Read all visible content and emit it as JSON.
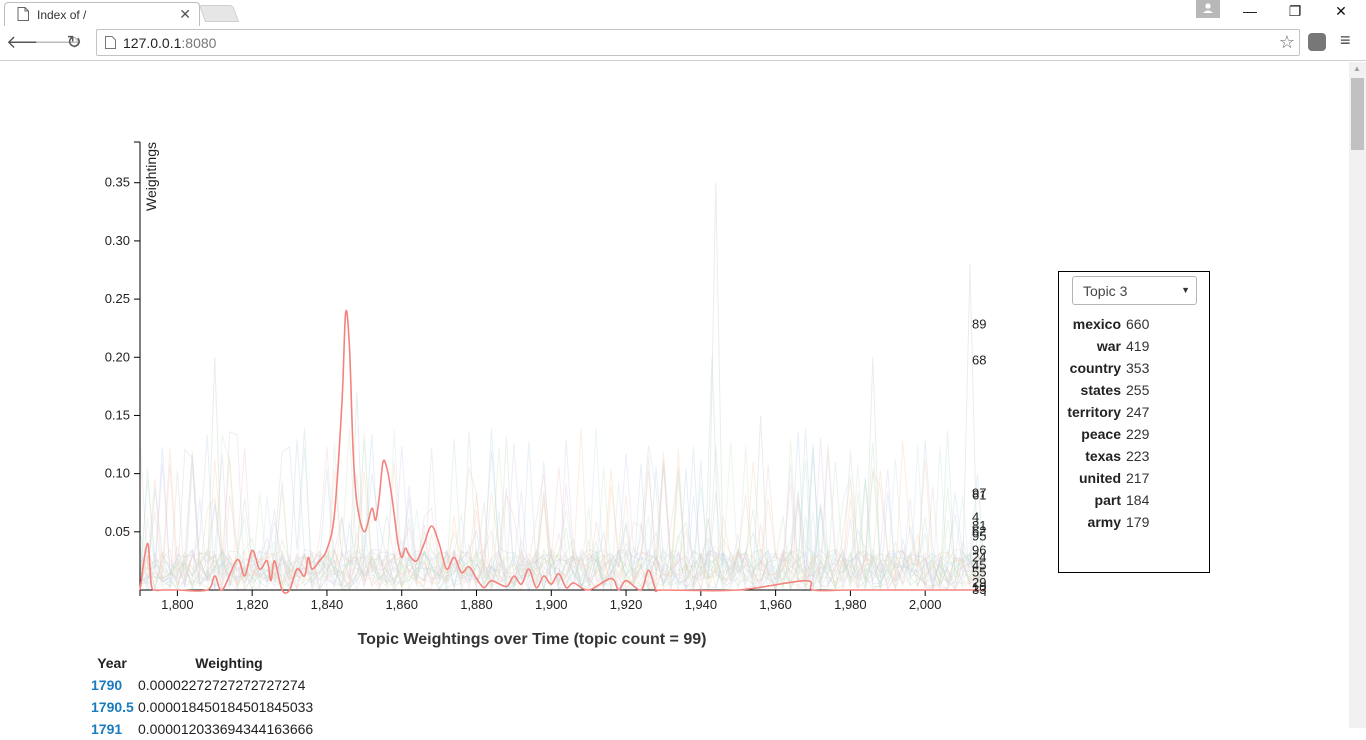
{
  "browser": {
    "tab_title": "Index of /",
    "url_host": "127.0.0.1",
    "url_port": ":8080"
  },
  "topic_panel": {
    "selected_topic": "Topic 3",
    "words": [
      {
        "word": "mexico",
        "count": "660"
      },
      {
        "word": "war",
        "count": "419"
      },
      {
        "word": "country",
        "count": "353"
      },
      {
        "word": "states",
        "count": "255"
      },
      {
        "word": "territory",
        "count": "247"
      },
      {
        "word": "peace",
        "count": "229"
      },
      {
        "word": "texas",
        "count": "223"
      },
      {
        "word": "united",
        "count": "217"
      },
      {
        "word": "part",
        "count": "184"
      },
      {
        "word": "army",
        "count": "179"
      }
    ]
  },
  "table": {
    "headers": [
      "Year",
      "Weighting"
    ],
    "rows": [
      {
        "year": "1790",
        "weighting": "0.00002272727272727274"
      },
      {
        "year": "1790.5",
        "weighting": "0.000018450184501845033"
      },
      {
        "year": "1791",
        "weighting": "0.000012033694344163666"
      }
    ]
  },
  "chart_data": {
    "type": "line",
    "title": "Topic Weightings over Time (topic count = 99)",
    "xlabel": "",
    "ylabel": "Weightings",
    "xlim": [
      1790,
      2016
    ],
    "ylim": [
      0,
      0.385
    ],
    "x_ticks": [
      "1,800",
      "1,820",
      "1,840",
      "1,860",
      "1,880",
      "1,900",
      "1,920",
      "1,940",
      "1,960",
      "1,980",
      "2,000"
    ],
    "y_ticks": [
      "0.05",
      "0.10",
      "0.15",
      "0.20",
      "0.25",
      "0.30",
      "0.35"
    ],
    "grid": false,
    "highlight_color": "#f4837d",
    "series": [
      {
        "name": "Topic 3",
        "x": [
          1790,
          1792,
          1793,
          1794,
          1796,
          1800,
          1808,
          1810,
          1812,
          1816,
          1818,
          1820,
          1822,
          1824,
          1825,
          1826,
          1828,
          1830,
          1832,
          1834,
          1835,
          1836,
          1838,
          1840,
          1842,
          1844,
          1845,
          1846,
          1847,
          1848,
          1850,
          1852,
          1853,
          1854,
          1855,
          1856,
          1857,
          1858,
          1859,
          1860,
          1861,
          1862,
          1864,
          1866,
          1868,
          1870,
          1872,
          1874,
          1876,
          1878,
          1880,
          1882,
          1884,
          1888,
          1890,
          1892,
          1894,
          1896,
          1898,
          1900,
          1902,
          1904,
          1906,
          1910,
          1916,
          1918,
          1920,
          1924,
          1926,
          1928,
          1930,
          1950,
          1968,
          1970,
          1980,
          2000,
          2016
        ],
        "y": [
          0.0,
          0.04,
          0.005,
          0.0,
          0.0,
          0.0,
          0.0,
          0.012,
          0.0,
          0.026,
          0.012,
          0.034,
          0.018,
          0.025,
          0.008,
          0.025,
          0.0,
          0.0,
          0.018,
          0.012,
          0.028,
          0.018,
          0.025,
          0.035,
          0.065,
          0.16,
          0.238,
          0.21,
          0.12,
          0.075,
          0.05,
          0.07,
          0.06,
          0.08,
          0.11,
          0.105,
          0.088,
          0.065,
          0.04,
          0.028,
          0.036,
          0.03,
          0.025,
          0.04,
          0.055,
          0.04,
          0.018,
          0.028,
          0.015,
          0.02,
          0.01,
          0.002,
          0.008,
          0.003,
          0.012,
          0.005,
          0.018,
          0.002,
          0.012,
          0.005,
          0.014,
          0.002,
          0.006,
          0.0,
          0.01,
          0.0,
          0.008,
          0.0,
          0.017,
          0.0,
          0.0,
          0.0,
          0.008,
          0.0,
          0.0,
          0.0,
          0.0
        ]
      }
    ],
    "line_end_labels": [
      {
        "label": "89",
        "y": 0.229
      },
      {
        "label": "68",
        "y": 0.198
      },
      {
        "label": "97",
        "y": 0.084
      },
      {
        "label": "61",
        "y": 0.082
      },
      {
        "label": "4",
        "y": 0.063
      },
      {
        "label": "81",
        "y": 0.056
      },
      {
        "label": "62",
        "y": 0.051
      },
      {
        "label": "95",
        "y": 0.047
      },
      {
        "label": "96",
        "y": 0.035
      },
      {
        "label": "24",
        "y": 0.029
      },
      {
        "label": "45",
        "y": 0.022
      },
      {
        "label": "55",
        "y": 0.016
      },
      {
        "label": "29",
        "y": 0.007
      },
      {
        "label": "10",
        "y": 0.003
      },
      {
        "label": "33",
        "y": 0.001
      }
    ]
  }
}
